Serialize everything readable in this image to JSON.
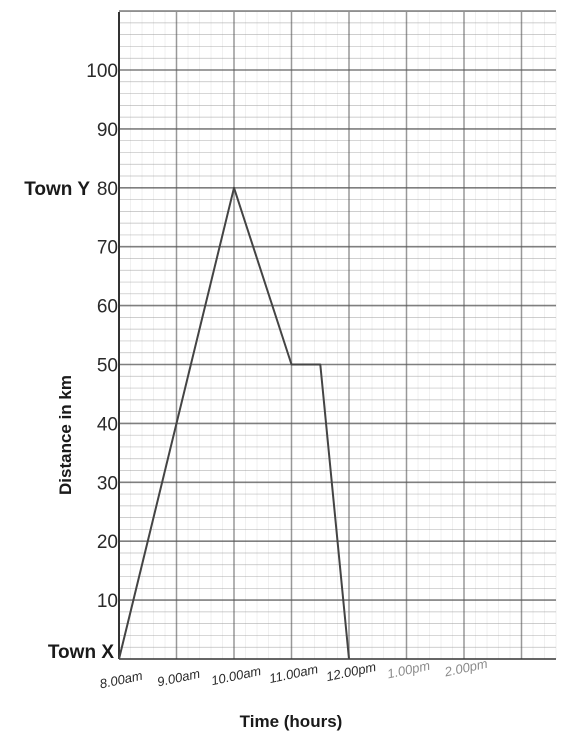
{
  "chart_data": {
    "type": "line",
    "xlabel": "Time (hours)",
    "ylabel": "Distance in km",
    "x_tick_labels": [
      "8.00am",
      "9.00am",
      "10.00am",
      "11.00am",
      "12.00pm",
      "1.00pm",
      "2.00pm"
    ],
    "y_tick_labels": [
      "10",
      "20",
      "30",
      "40",
      "50",
      "60",
      "70",
      "80",
      "90",
      "100"
    ],
    "y_ticks": [
      10,
      20,
      30,
      40,
      50,
      60,
      70,
      80,
      90,
      100
    ],
    "xlim": [
      "8.00am",
      "3.00pm"
    ],
    "ylim": [
      0,
      110
    ],
    "grid": true,
    "annotations": [
      {
        "label": "Town X",
        "y": 0
      },
      {
        "label": "Town Y",
        "y": 80
      }
    ],
    "series": [
      {
        "points": [
          {
            "time": "8.00am",
            "distance_km": 0
          },
          {
            "time": "10.00am",
            "distance_km": 80
          },
          {
            "time": "11.00am",
            "distance_km": 50
          },
          {
            "time": "11.30am",
            "distance_km": 50
          },
          {
            "time": "12.00pm",
            "distance_km": 0
          }
        ]
      }
    ]
  }
}
